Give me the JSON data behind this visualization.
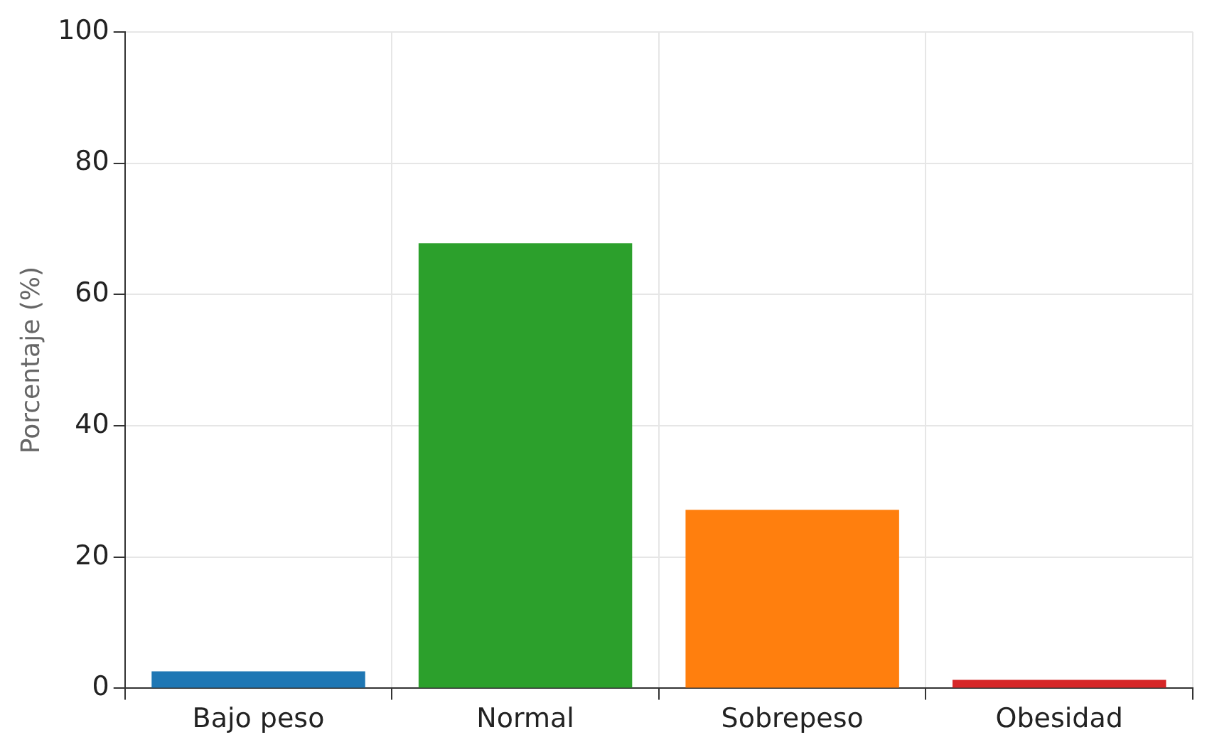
{
  "chart_data": {
    "type": "bar",
    "ylabel": "Porcentaje (%)",
    "categories": [
      "Bajo peso",
      "Normal",
      "Sobrepeso",
      "Obesidad"
    ],
    "values": [
      2.6,
      67.8,
      27.2,
      1.3
    ],
    "colors": [
      "#1f77b4",
      "#2ca02c",
      "#ff7f0e",
      "#d62728"
    ],
    "ylim": [
      0,
      100
    ],
    "yticks": [
      0,
      20,
      40,
      60,
      80,
      100
    ],
    "grid": true
  }
}
